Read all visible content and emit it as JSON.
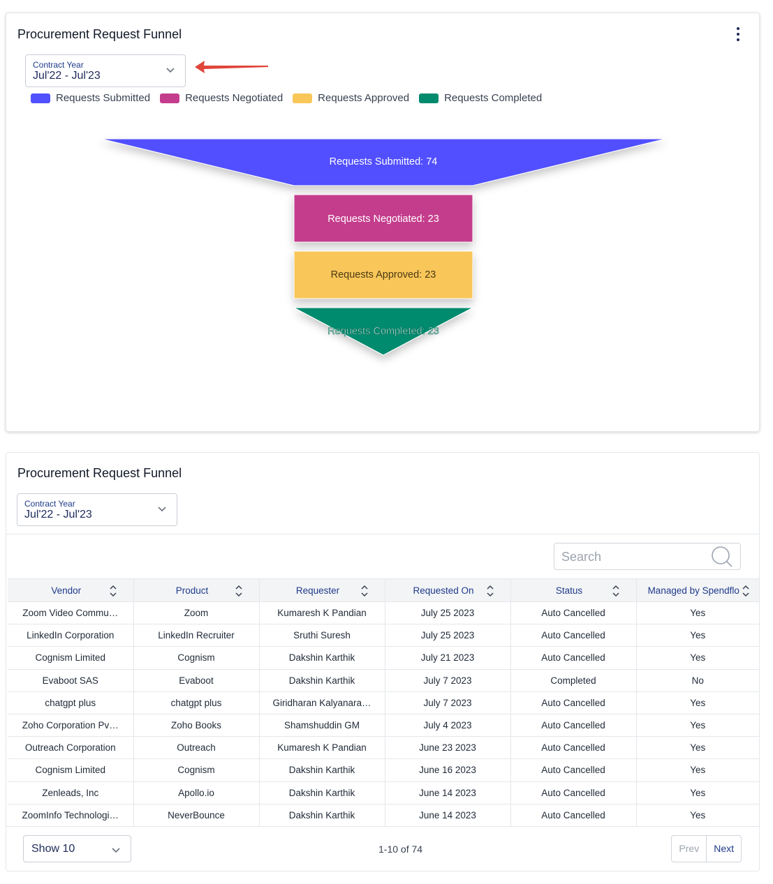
{
  "top_card": {
    "title": "Procurement Request Funnel",
    "filter": {
      "label": "Contract Year",
      "value": "Jul'22 - Jul'23"
    },
    "menu_icon": "kebab-vertical-icon"
  },
  "chart_data": {
    "type": "funnel",
    "stages": [
      {
        "name": "Requests Submitted",
        "value": 74,
        "color": "#5150ff",
        "label": "Requests Submitted: 74"
      },
      {
        "name": "Requests Negotiated",
        "value": 23,
        "color": "#c43c8c",
        "label": "Requests Negotiated: 23"
      },
      {
        "name": "Requests Approved",
        "value": 23,
        "color": "#f9c65a",
        "label": "Requests Approved: 23"
      },
      {
        "name": "Requests Completed",
        "value": 23,
        "color": "#008a6e",
        "label": "Requests Completed: 23"
      }
    ],
    "legend": [
      "Requests Submitted",
      "Requests Negotiated",
      "Requests Approved",
      "Requests Completed"
    ],
    "legend_position": "top-left"
  },
  "bottom_card": {
    "title": "Procurement Request Funnel",
    "filter": {
      "label": "Contract Year",
      "value": "Jul'22 - Jul'23"
    },
    "search_placeholder": "Search",
    "columns": [
      "Vendor",
      "Product",
      "Requester",
      "Requested On",
      "Status",
      "Managed by Spendflo"
    ],
    "rows": [
      [
        "Zoom Video Commu…",
        "Zoom",
        "Kumaresh K Pandian",
        "July 25 2023",
        "Auto Cancelled",
        "Yes"
      ],
      [
        "LinkedIn Corporation",
        "LinkedIn Recruiter",
        "Sruthi Suresh",
        "July 25 2023",
        "Auto Cancelled",
        "Yes"
      ],
      [
        "Cognism Limited",
        "Cognism",
        "Dakshin Karthik",
        "July 21 2023",
        "Auto Cancelled",
        "Yes"
      ],
      [
        "Evaboot SAS",
        "Evaboot",
        "Dakshin Karthik",
        "July 7 2023",
        "Completed",
        "No"
      ],
      [
        "chatgpt plus",
        "chatgpt plus",
        "Giridharan Kalyanara…",
        "July 7 2023",
        "Auto Cancelled",
        "Yes"
      ],
      [
        "Zoho Corporation Pv…",
        "Zoho Books",
        "Shamshuddin GM",
        "July 4 2023",
        "Auto Cancelled",
        "Yes"
      ],
      [
        "Outreach Corporation",
        "Outreach",
        "Kumaresh K Pandian",
        "June 23 2023",
        "Auto Cancelled",
        "Yes"
      ],
      [
        "Cognism Limited",
        "Cognism",
        "Dakshin Karthik",
        "June 16 2023",
        "Auto Cancelled",
        "Yes"
      ],
      [
        "Zenleads, Inc",
        "Apollo.io",
        "Dakshin Karthik",
        "June 14 2023",
        "Auto Cancelled",
        "Yes"
      ],
      [
        "ZoomInfo Technologi…",
        "NeverBounce",
        "Dakshin Karthik",
        "June 14 2023",
        "Auto Cancelled",
        "Yes"
      ]
    ],
    "page_size": "Show 10",
    "page_info": "1-10 of 74",
    "prev_label": "Prev",
    "next_label": "Next"
  }
}
